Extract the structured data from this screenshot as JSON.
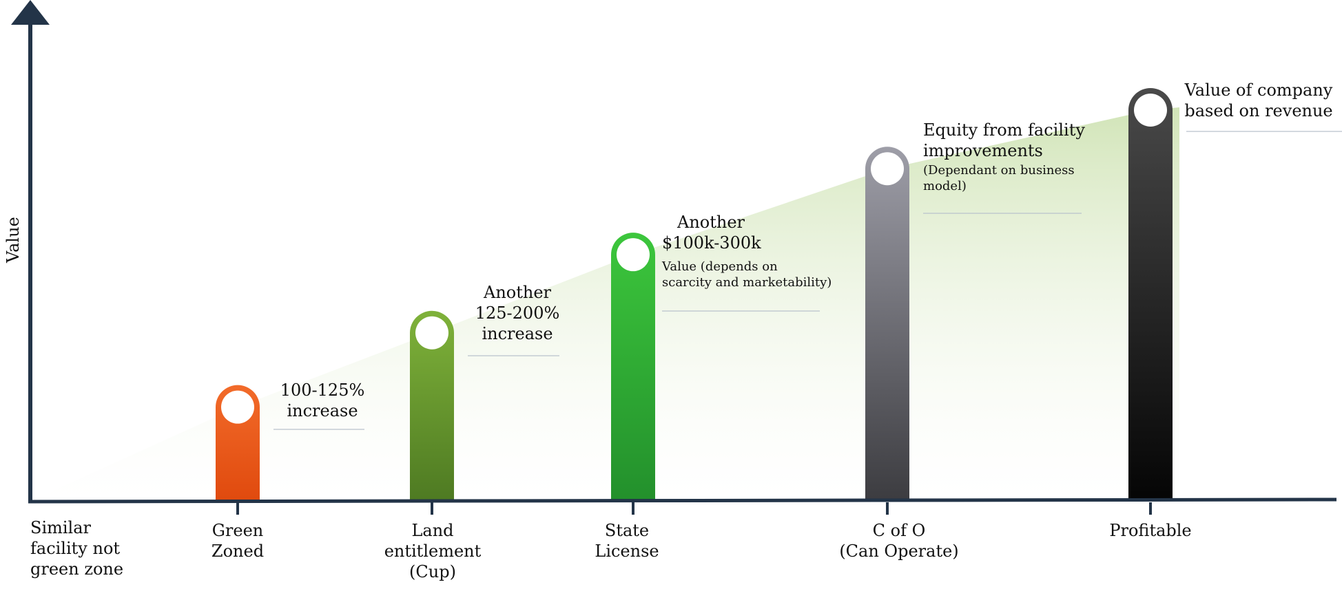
{
  "y_axis_label": "Value",
  "baseline_label": [
    "Similar",
    "facility not",
    "green zone"
  ],
  "stages": [
    {
      "id": "green-zoned",
      "label": [
        "Green",
        "Zoned"
      ],
      "relative_value": 0.24,
      "color_top": "#f26b2a",
      "color_bottom": "#e04a0e"
    },
    {
      "id": "land-entitlement",
      "label": [
        "Land",
        "entitlement",
        "(Cup)"
      ],
      "relative_value": 0.43,
      "color_top": "#7fb23a",
      "color_bottom": "#4e7a22"
    },
    {
      "id": "state-license",
      "label": [
        "State",
        "License"
      ],
      "relative_value": 0.63,
      "color_top": "#3cc63c",
      "color_bottom": "#23902c"
    },
    {
      "id": "c-of-o",
      "label": [
        "C of O",
        "(Can Operate)"
      ],
      "relative_value": 0.85,
      "color_top": "#9e9ea8",
      "color_bottom": "#3c3c40"
    },
    {
      "id": "profitable",
      "label": [
        "Profitable"
      ],
      "relative_value": 1.0,
      "color_top": "#4a4a4a",
      "color_bottom": "#050505"
    }
  ],
  "annotations": {
    "green_zoned": [
      "100-125%",
      "increase"
    ],
    "land_entitlement": [
      "Another",
      "125-200%",
      "increase"
    ],
    "state_license_title": [
      "Another",
      "$100k-300k"
    ],
    "state_license_note": [
      "Value (depends on",
      "scarcity and marketability)"
    ],
    "c_of_o_title": [
      "Equity from facility",
      "improvements"
    ],
    "c_of_o_note": [
      "(Dependant on business",
      "model)"
    ],
    "profitable": [
      "Value of company",
      "based on revenue"
    ]
  },
  "colors": {
    "axis": "#233448",
    "area": "#cfe3b4",
    "divider": "#b9c2cc"
  }
}
